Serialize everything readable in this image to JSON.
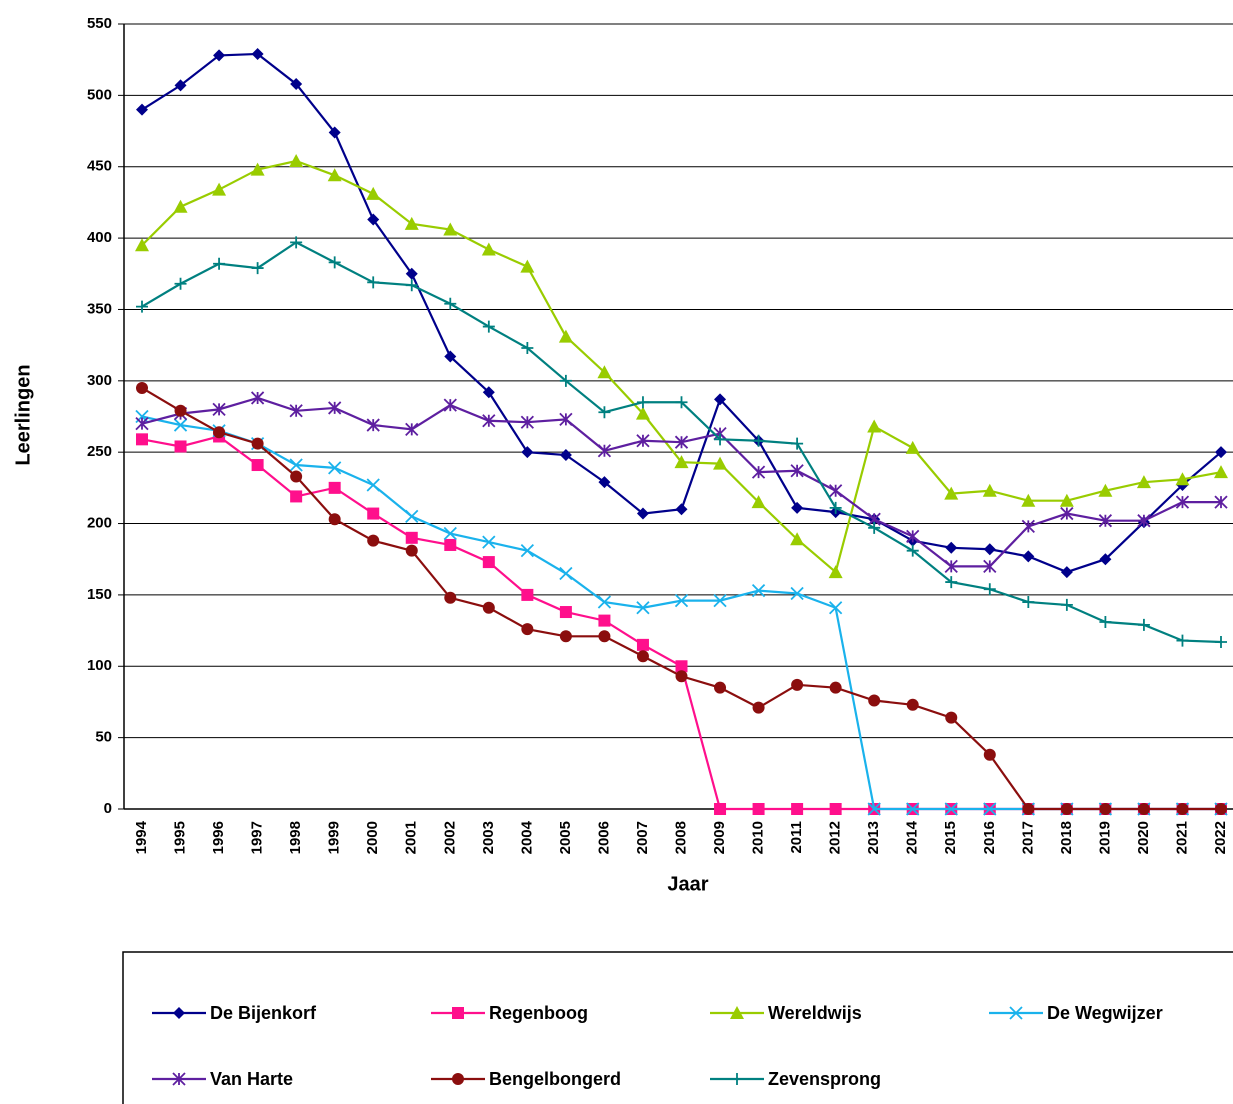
{
  "chart_data": {
    "type": "line",
    "y_label": "Leerlingen",
    "x_label": "Jaar",
    "categories": [
      "1994",
      "1995",
      "1996",
      "1997",
      "1998",
      "1999",
      "2000",
      "2001",
      "2002",
      "2003",
      "2004",
      "2005",
      "2006",
      "2007",
      "2008",
      "2009",
      "2010",
      "2011",
      "2012",
      "2013",
      "2014",
      "2015",
      "2016",
      "2017",
      "2018",
      "2019",
      "2020",
      "2021",
      "2022"
    ],
    "ylim": [
      0,
      550
    ],
    "yticks": [
      0,
      50,
      100,
      150,
      200,
      250,
      300,
      350,
      400,
      450,
      500,
      550
    ],
    "grid": true,
    "legend": "bottom",
    "series": [
      {
        "name": "De Bijenkorf",
        "color": "#00008b",
        "marker": "diamond",
        "values": [
          490,
          507,
          528,
          529,
          508,
          474,
          413,
          375,
          317,
          292,
          250,
          248,
          229,
          207,
          210,
          287,
          258,
          211,
          208,
          203,
          188,
          183,
          182,
          177,
          166,
          175,
          201,
          227,
          250
        ]
      },
      {
        "name": "Regenboog",
        "color": "#ff0f8c",
        "marker": "square",
        "values": [
          259,
          254,
          261,
          241,
          219,
          225,
          207,
          190,
          185,
          173,
          150,
          138,
          132,
          115,
          100,
          0,
          0,
          0,
          0,
          0,
          0,
          0,
          0,
          0,
          0,
          0,
          0,
          0,
          0
        ]
      },
      {
        "name": "Wereldwijs",
        "color": "#99cc00",
        "marker": "triangle",
        "values": [
          395,
          422,
          434,
          448,
          454,
          444,
          431,
          410,
          406,
          392,
          380,
          331,
          306,
          277,
          243,
          242,
          215,
          189,
          166,
          268,
          253,
          221,
          223,
          216,
          216,
          223,
          229,
          231,
          236
        ]
      },
      {
        "name": "De Wegwijzer",
        "color": "#1ab2ec",
        "marker": "x",
        "values": [
          275,
          269,
          265,
          256,
          241,
          239,
          227,
          205,
          193,
          187,
          181,
          165,
          145,
          141,
          146,
          146,
          153,
          151,
          141,
          0,
          0,
          0,
          0,
          0,
          0,
          0,
          0,
          0,
          0
        ]
      },
      {
        "name": "Van Harte",
        "color": "#5e1fa0",
        "marker": "star",
        "values": [
          270,
          277,
          280,
          288,
          279,
          281,
          269,
          266,
          283,
          272,
          271,
          273,
          251,
          258,
          257,
          263,
          236,
          237,
          223,
          203,
          191,
          170,
          170,
          198,
          207,
          202,
          202,
          215,
          215
        ]
      },
      {
        "name": "Bengelbongerd",
        "color": "#8b0e0e",
        "marker": "circle",
        "values": [
          295,
          279,
          264,
          256,
          233,
          203,
          188,
          181,
          148,
          141,
          126,
          121,
          121,
          107,
          93,
          85,
          71,
          87,
          85,
          76,
          73,
          64,
          38,
          0,
          0,
          0,
          0,
          0,
          0
        ]
      },
      {
        "name": "Zevensprong",
        "color": "#008080",
        "marker": "plus",
        "values": [
          352,
          368,
          382,
          379,
          397,
          383,
          369,
          367,
          354,
          338,
          323,
          300,
          278,
          285,
          285,
          259,
          258,
          256,
          211,
          197,
          181,
          159,
          154,
          145,
          143,
          131,
          129,
          118,
          117
        ]
      }
    ]
  }
}
